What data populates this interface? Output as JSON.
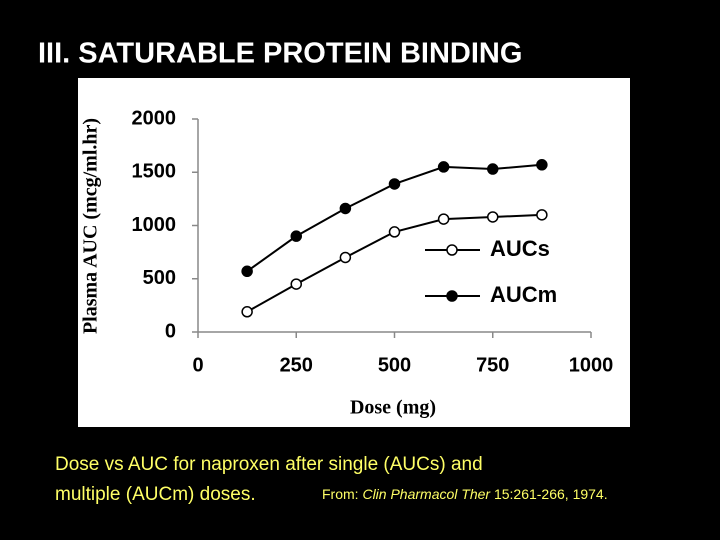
{
  "slide_title": "III. SATURABLE PROTEIN BINDING",
  "caption": {
    "text": "Dose vs AUC for naproxen after single (AUCs) and multiple (AUCm) doses.",
    "source_prefix": "From:",
    "source_journal": "Clin Pharmacol Ther",
    "source_ref": "15:261-266, 1974."
  },
  "chart_data": {
    "type": "line",
    "x_label": "Dose (mg)",
    "y_label": "Plasma AUC (mcg/ml.hr)",
    "x": [
      125,
      250,
      375,
      500,
      625,
      750,
      875
    ],
    "series": [
      {
        "name": "AUCs",
        "color": "#000000",
        "marker": "open",
        "values": [
          190,
          450,
          700,
          940,
          1060,
          1080,
          1100
        ]
      },
      {
        "name": "AUCm",
        "color": "#000000",
        "marker": "filled",
        "values": [
          570,
          900,
          1160,
          1390,
          1550,
          1530,
          1570
        ]
      }
    ],
    "xlim": [
      0,
      1000
    ],
    "xticks": [
      0,
      250,
      500,
      750,
      1000
    ],
    "ylim": [
      0,
      2000
    ],
    "yticks": [
      0,
      500,
      1000,
      1500,
      2000
    ]
  }
}
